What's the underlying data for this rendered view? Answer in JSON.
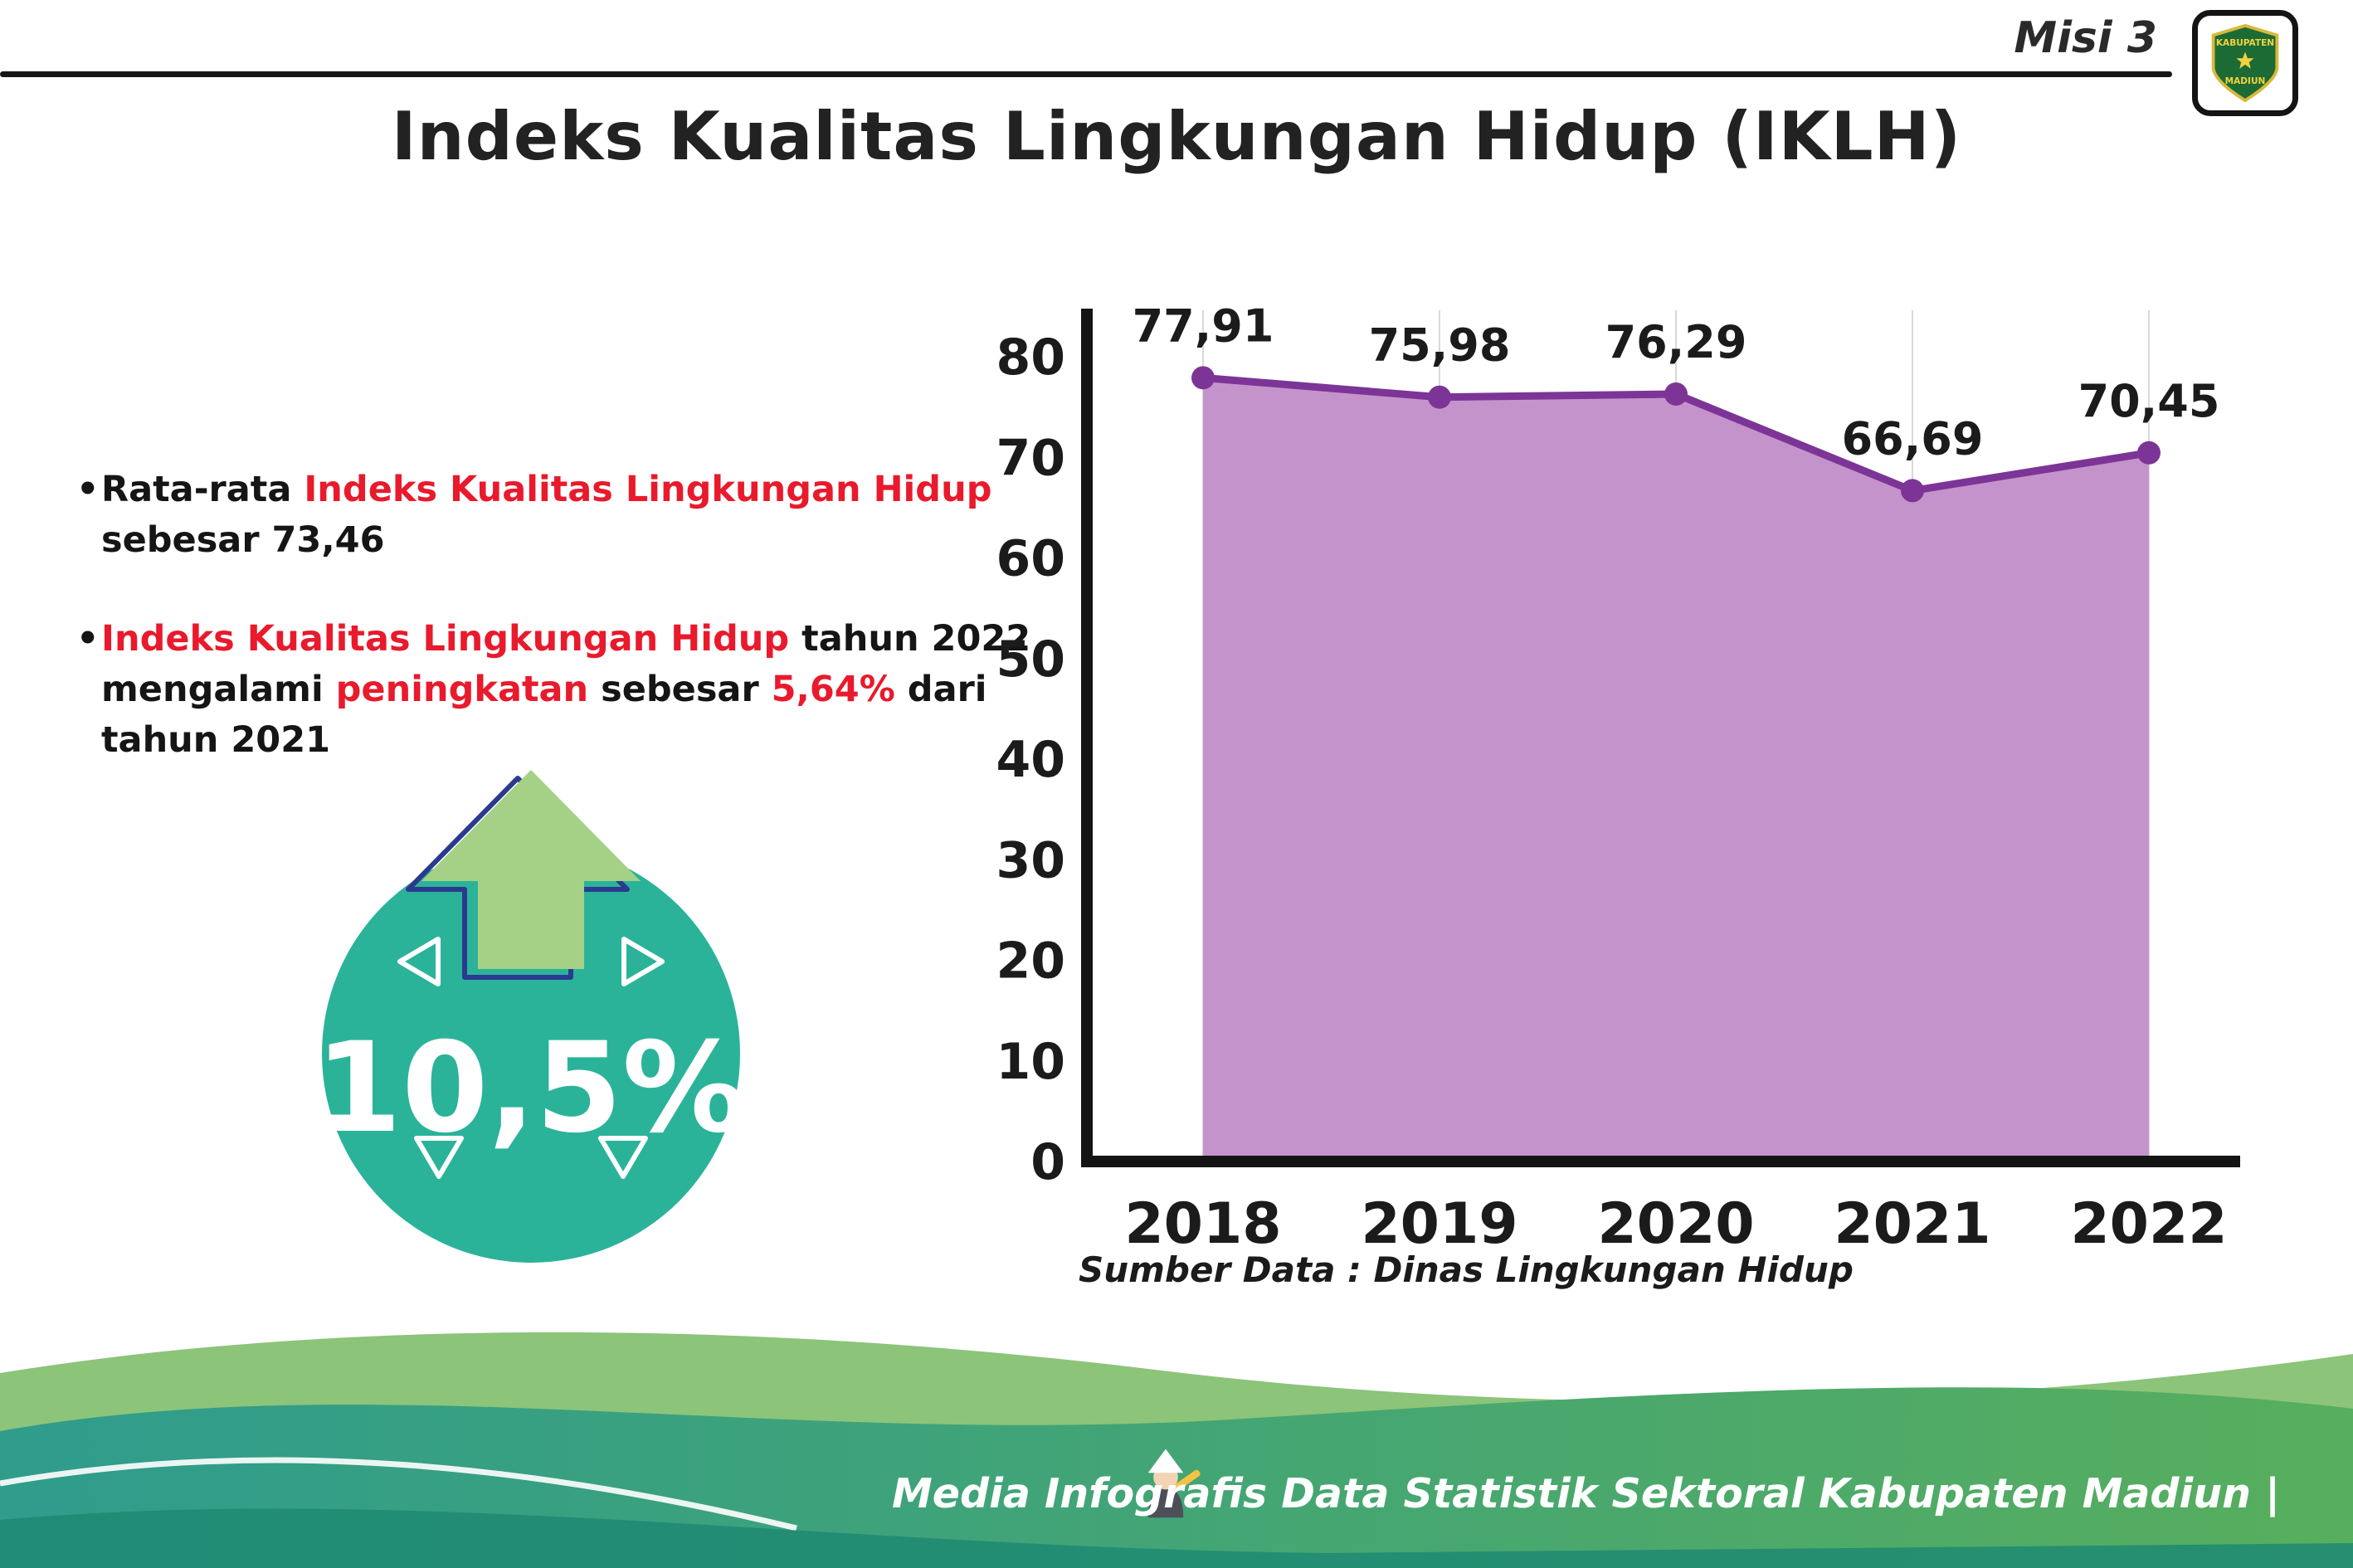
{
  "header": {
    "mission": "Misi 3",
    "title": "Indeks Kualitas Lingkungan Hidup (IKLH)",
    "logo": {
      "top_text": "KABUPATEN",
      "bottom_text": "MADIUN"
    }
  },
  "bullets": [
    {
      "segments": [
        "Rata-rata ",
        "Indeks Kualitas Lingkungan Hidup",
        "sebesar 73,46"
      ]
    },
    {
      "segments": [
        "Indeks Kualitas Lingkungan Hidup",
        " tahun 2022",
        "mengalami ",
        "peningkatan",
        " sebesar ",
        "5,64%",
        " dari",
        "tahun 2021"
      ]
    }
  ],
  "badge": {
    "value": "10,5%",
    "circle_color": "#2bb39a",
    "arrow_color": "#a5d187",
    "arrow_outline": "#2b3a8f"
  },
  "chart_data": {
    "type": "area",
    "title": "",
    "categories": [
      "2018",
      "2019",
      "2020",
      "2021",
      "2022"
    ],
    "values": [
      77.91,
      75.98,
      76.29,
      66.69,
      70.45
    ],
    "value_labels": [
      "77,91",
      "75,98",
      "76,29",
      "66,69",
      "70,45"
    ],
    "xlabel": "",
    "ylabel": "",
    "ylim": [
      0,
      80
    ],
    "ytick_step": 10,
    "grid": "vertical-light",
    "legend": "none",
    "line_color": "#7c3596",
    "fill_color": "#c493cc",
    "axis_color": "#141414",
    "source": "Sumber Data : Dinas Lingkungan Hidup"
  },
  "footer": {
    "credit": "Media Infografis Data Statistik Sektoral Kabupaten Madiun |",
    "gradient_left": "#2f9c8c",
    "gradient_right": "#57ae5e"
  }
}
